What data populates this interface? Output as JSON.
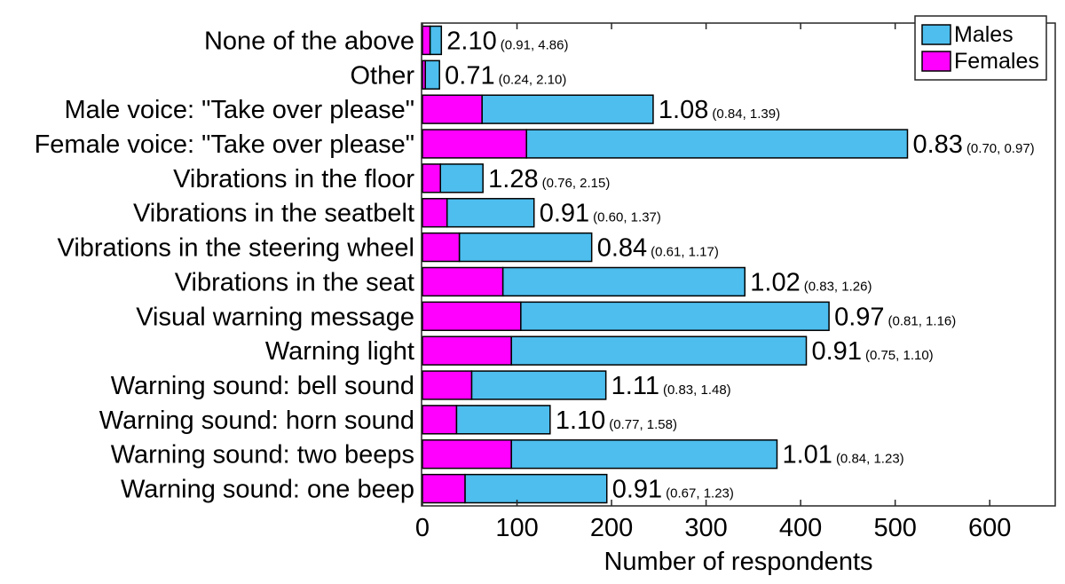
{
  "chart_data": {
    "type": "bar",
    "orientation": "horizontal",
    "stacked": true,
    "categories": [
      "None of the above",
      "Other",
      "Male voice: \"Take over please\"",
      "Female voice: \"Take over please\"",
      "Vibrations in the floor",
      "Vibrations in the seatbelt",
      "Vibrations in the steering wheel",
      "Vibrations in the seat",
      "Visual warning message",
      "Warning light",
      "Warning sound: bell sound",
      "Warning sound: horn sound",
      "Warning sound: two beeps",
      "Warning sound: one beep"
    ],
    "series": [
      {
        "name": "Females",
        "color": "#ff00ff",
        "values": [
          8,
          3,
          63,
          110,
          19,
          26,
          39,
          85,
          104,
          94,
          52,
          36,
          94,
          45
        ]
      },
      {
        "name": "Males",
        "color": "#4dbeee",
        "values": [
          12,
          15,
          181,
          403,
          45,
          92,
          140,
          256,
          326,
          312,
          142,
          99,
          281,
          150
        ]
      }
    ],
    "annotations": [
      {
        "ratio": "2.10",
        "ci": "(0.91, 4.86)"
      },
      {
        "ratio": "0.71",
        "ci": "(0.24, 2.10)"
      },
      {
        "ratio": "1.08",
        "ci": "(0.84, 1.39)"
      },
      {
        "ratio": "0.83",
        "ci": "(0.70, 0.97)"
      },
      {
        "ratio": "1.28",
        "ci": "(0.76, 2.15)"
      },
      {
        "ratio": "0.91",
        "ci": "(0.60, 1.37)"
      },
      {
        "ratio": "0.84",
        "ci": "(0.61, 1.17)"
      },
      {
        "ratio": "1.02",
        "ci": "(0.83, 1.26)"
      },
      {
        "ratio": "0.97",
        "ci": "(0.81, 1.16)"
      },
      {
        "ratio": "0.91",
        "ci": "(0.75, 1.10)"
      },
      {
        "ratio": "1.11",
        "ci": "(0.83, 1.48)"
      },
      {
        "ratio": "1.10",
        "ci": "(0.77, 1.58)"
      },
      {
        "ratio": "1.01",
        "ci": "(0.84, 1.23)"
      },
      {
        "ratio": "0.91",
        "ci": "(0.67, 1.23)"
      }
    ],
    "xlabel": "Number of respondents",
    "ylabel": "",
    "xlim": [
      0,
      675
    ],
    "xticks": [
      0,
      100,
      200,
      300,
      400,
      500,
      600
    ],
    "grid": false,
    "legend": {
      "placement": "top-right",
      "order": [
        "Males",
        "Females"
      ]
    }
  }
}
